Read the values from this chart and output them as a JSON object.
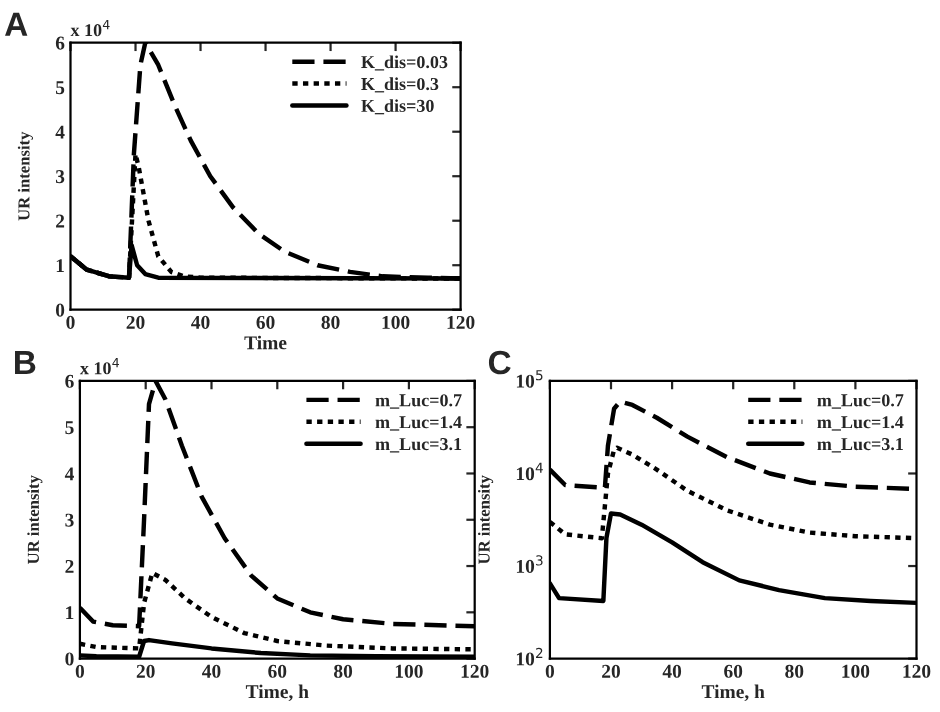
{
  "chart_data": [
    {
      "type": "line",
      "title": "A",
      "xlabel": "Time",
      "ylabel": "UR intensity",
      "annotations": [
        "x 10$^{4}$"
      ],
      "xlim": [
        0,
        120
      ],
      "xticks": [
        0,
        20,
        40,
        60,
        80,
        100,
        120
      ],
      "ylim": [
        0,
        6
      ],
      "yticks": [
        0,
        1,
        2,
        3,
        4,
        5,
        6
      ],
      "grid": false,
      "legend": "top right",
      "series": [
        {
          "name": "K_dis=0.03",
          "color": "#000000",
          "line_style": "dashed",
          "x": [
            0,
            5,
            12,
            18,
            19.5,
            21.5,
            23,
            27,
            32,
            37,
            43,
            50,
            58,
            66,
            76,
            86,
            96,
            110,
            120
          ],
          "values": [
            1.2,
            0.9,
            0.75,
            0.72,
            3.5,
            5.5,
            6,
            5.5,
            4.6,
            3.8,
            3,
            2.3,
            1.7,
            1.3,
            1.0,
            0.85,
            0.75,
            0.72,
            0.7
          ]
        },
        {
          "name": "K_dis=0.3",
          "color": "#000000",
          "line_style": "dotted",
          "x": [
            0,
            5,
            12,
            18,
            20,
            21,
            24,
            27,
            31,
            35,
            40,
            120
          ],
          "values": [
            1.2,
            0.9,
            0.75,
            0.72,
            3.5,
            3.2,
            2.0,
            1.2,
            0.85,
            0.75,
            0.72,
            0.7
          ]
        },
        {
          "name": "K_dis=30",
          "color": "#000000",
          "line_style": "solid",
          "x": [
            0,
            5,
            12,
            18,
            18.8,
            20.5,
            23,
            27,
            120
          ],
          "values": [
            1.2,
            0.9,
            0.75,
            0.72,
            1.45,
            1.0,
            0.8,
            0.72,
            0.7
          ]
        }
      ]
    },
    {
      "type": "line",
      "title": "B",
      "xlabel": "Time, h",
      "ylabel": "UR intensity",
      "annotations": [
        "x 10$^{4}$"
      ],
      "xlim": [
        0,
        120
      ],
      "xticks": [
        0,
        20,
        40,
        60,
        80,
        100,
        120
      ],
      "ylim": [
        0,
        6
      ],
      "yticks": [
        0,
        1,
        2,
        3,
        4,
        5,
        6
      ],
      "grid": false,
      "legend": "top right",
      "series": [
        {
          "name": "m_Luc=0.7",
          "color": "#000000",
          "line_style": "dashed",
          "x": [
            0,
            4,
            10,
            18,
            19.5,
            21,
            23,
            26,
            31,
            37,
            44,
            52,
            60,
            70,
            80,
            95,
            120
          ],
          "values": [
            1.1,
            0.8,
            0.72,
            0.7,
            3,
            5.5,
            6,
            5.6,
            4.6,
            3.5,
            2.6,
            1.8,
            1.3,
            1.0,
            0.85,
            0.75,
            0.7
          ]
        },
        {
          "name": "m_Luc=1.4",
          "color": "#000000",
          "line_style": "dotted",
          "x": [
            0,
            5,
            18,
            19.5,
            22,
            26,
            32,
            40,
            50,
            60,
            75,
            95,
            120
          ],
          "values": [
            0.32,
            0.25,
            0.22,
            1.2,
            1.85,
            1.7,
            1.3,
            0.9,
            0.55,
            0.38,
            0.28,
            0.22,
            0.2
          ]
        },
        {
          "name": "m_Luc=3.1",
          "color": "#000000",
          "line_style": "solid",
          "x": [
            0,
            5,
            18,
            19.5,
            21,
            28,
            40,
            55,
            70,
            90,
            120
          ],
          "values": [
            0.07,
            0.05,
            0.04,
            0.38,
            0.4,
            0.33,
            0.22,
            0.12,
            0.07,
            0.05,
            0.04
          ]
        }
      ]
    },
    {
      "type": "line",
      "title": "C",
      "xlabel": "Time, h",
      "ylabel": "UR intensity",
      "log": "y",
      "xlim": [
        0,
        120
      ],
      "xticks": [
        0,
        20,
        40,
        60,
        80,
        100,
        120
      ],
      "ylim": [
        100,
        100000
      ],
      "yticks": [
        {
          "value": 100,
          "label": "10$^{2}$"
        },
        {
          "value": 1000,
          "label": "10$^{3}$"
        },
        {
          "value": 10000,
          "label": "10$^{4}$"
        },
        {
          "value": 100000,
          "label": "10$^{5}$"
        }
      ],
      "grid": false,
      "legend": "top right",
      "series": [
        {
          "name": "m_Luc=0.7",
          "color": "#000000",
          "line_style": "dashed",
          "x": [
            0,
            5,
            18,
            19,
            21,
            23,
            27,
            35,
            45,
            58,
            72,
            85,
            100,
            120
          ],
          "values": [
            11000,
            7500,
            7000,
            20000,
            50000,
            60000,
            55000,
            40000,
            25000,
            15000,
            10000,
            8000,
            7200,
            6800
          ]
        },
        {
          "name": "m_Luc=1.4",
          "color": "#000000",
          "line_style": "dotted",
          "x": [
            0,
            5,
            17,
            19,
            21,
            22,
            27,
            35,
            45,
            58,
            72,
            85,
            100,
            120
          ],
          "values": [
            3000,
            2200,
            2000,
            10000,
            18000,
            19000,
            16000,
            11000,
            6500,
            4000,
            2800,
            2300,
            2100,
            2000
          ]
        },
        {
          "name": "m_Luc=3.1",
          "color": "#000000",
          "line_style": "solid",
          "x": [
            0,
            3,
            17.5,
            18.5,
            20,
            23,
            30,
            40,
            50,
            62,
            75,
            90,
            105,
            120
          ],
          "values": [
            650,
            450,
            420,
            2000,
            3700,
            3600,
            2800,
            1800,
            1100,
            700,
            550,
            450,
            420,
            400
          ]
        }
      ]
    }
  ]
}
